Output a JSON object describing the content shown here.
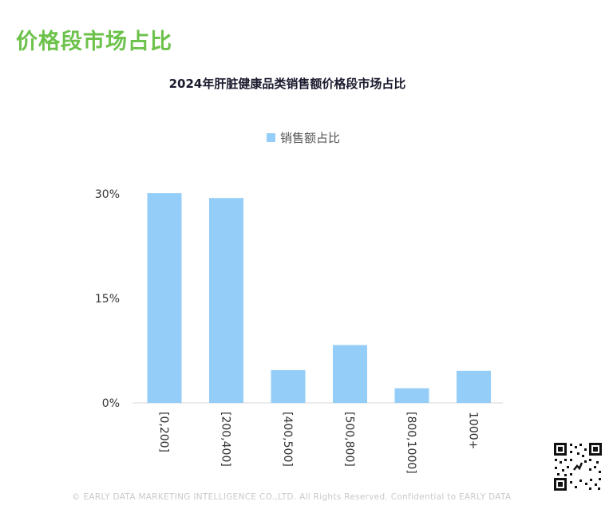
{
  "header": {
    "section_title": "价格段市场占比"
  },
  "chart_data": {
    "type": "bar",
    "title": "2024年肝脏健康品类销售额价格段市场占比",
    "categories": [
      "[0,200]",
      "[200,400]",
      "[400,500]",
      "[500,800]",
      "[800,1000]",
      "1000+"
    ],
    "series": [
      {
        "name": "销售额占比",
        "values": [
          30.1,
          29.4,
          4.7,
          8.3,
          2.1,
          4.6
        ],
        "color": "#93cdf8"
      }
    ],
    "y_ticks": [
      "0%",
      "15%",
      "30%"
    ],
    "ylim": [
      0,
      30
    ],
    "legend_position": "top",
    "grid": false
  },
  "footer": {
    "text": "© EARLY DATA MARKETING INTELLIGENCE CO.,LTD. All Rights Reserved. Confidential to EARLY DATA"
  }
}
